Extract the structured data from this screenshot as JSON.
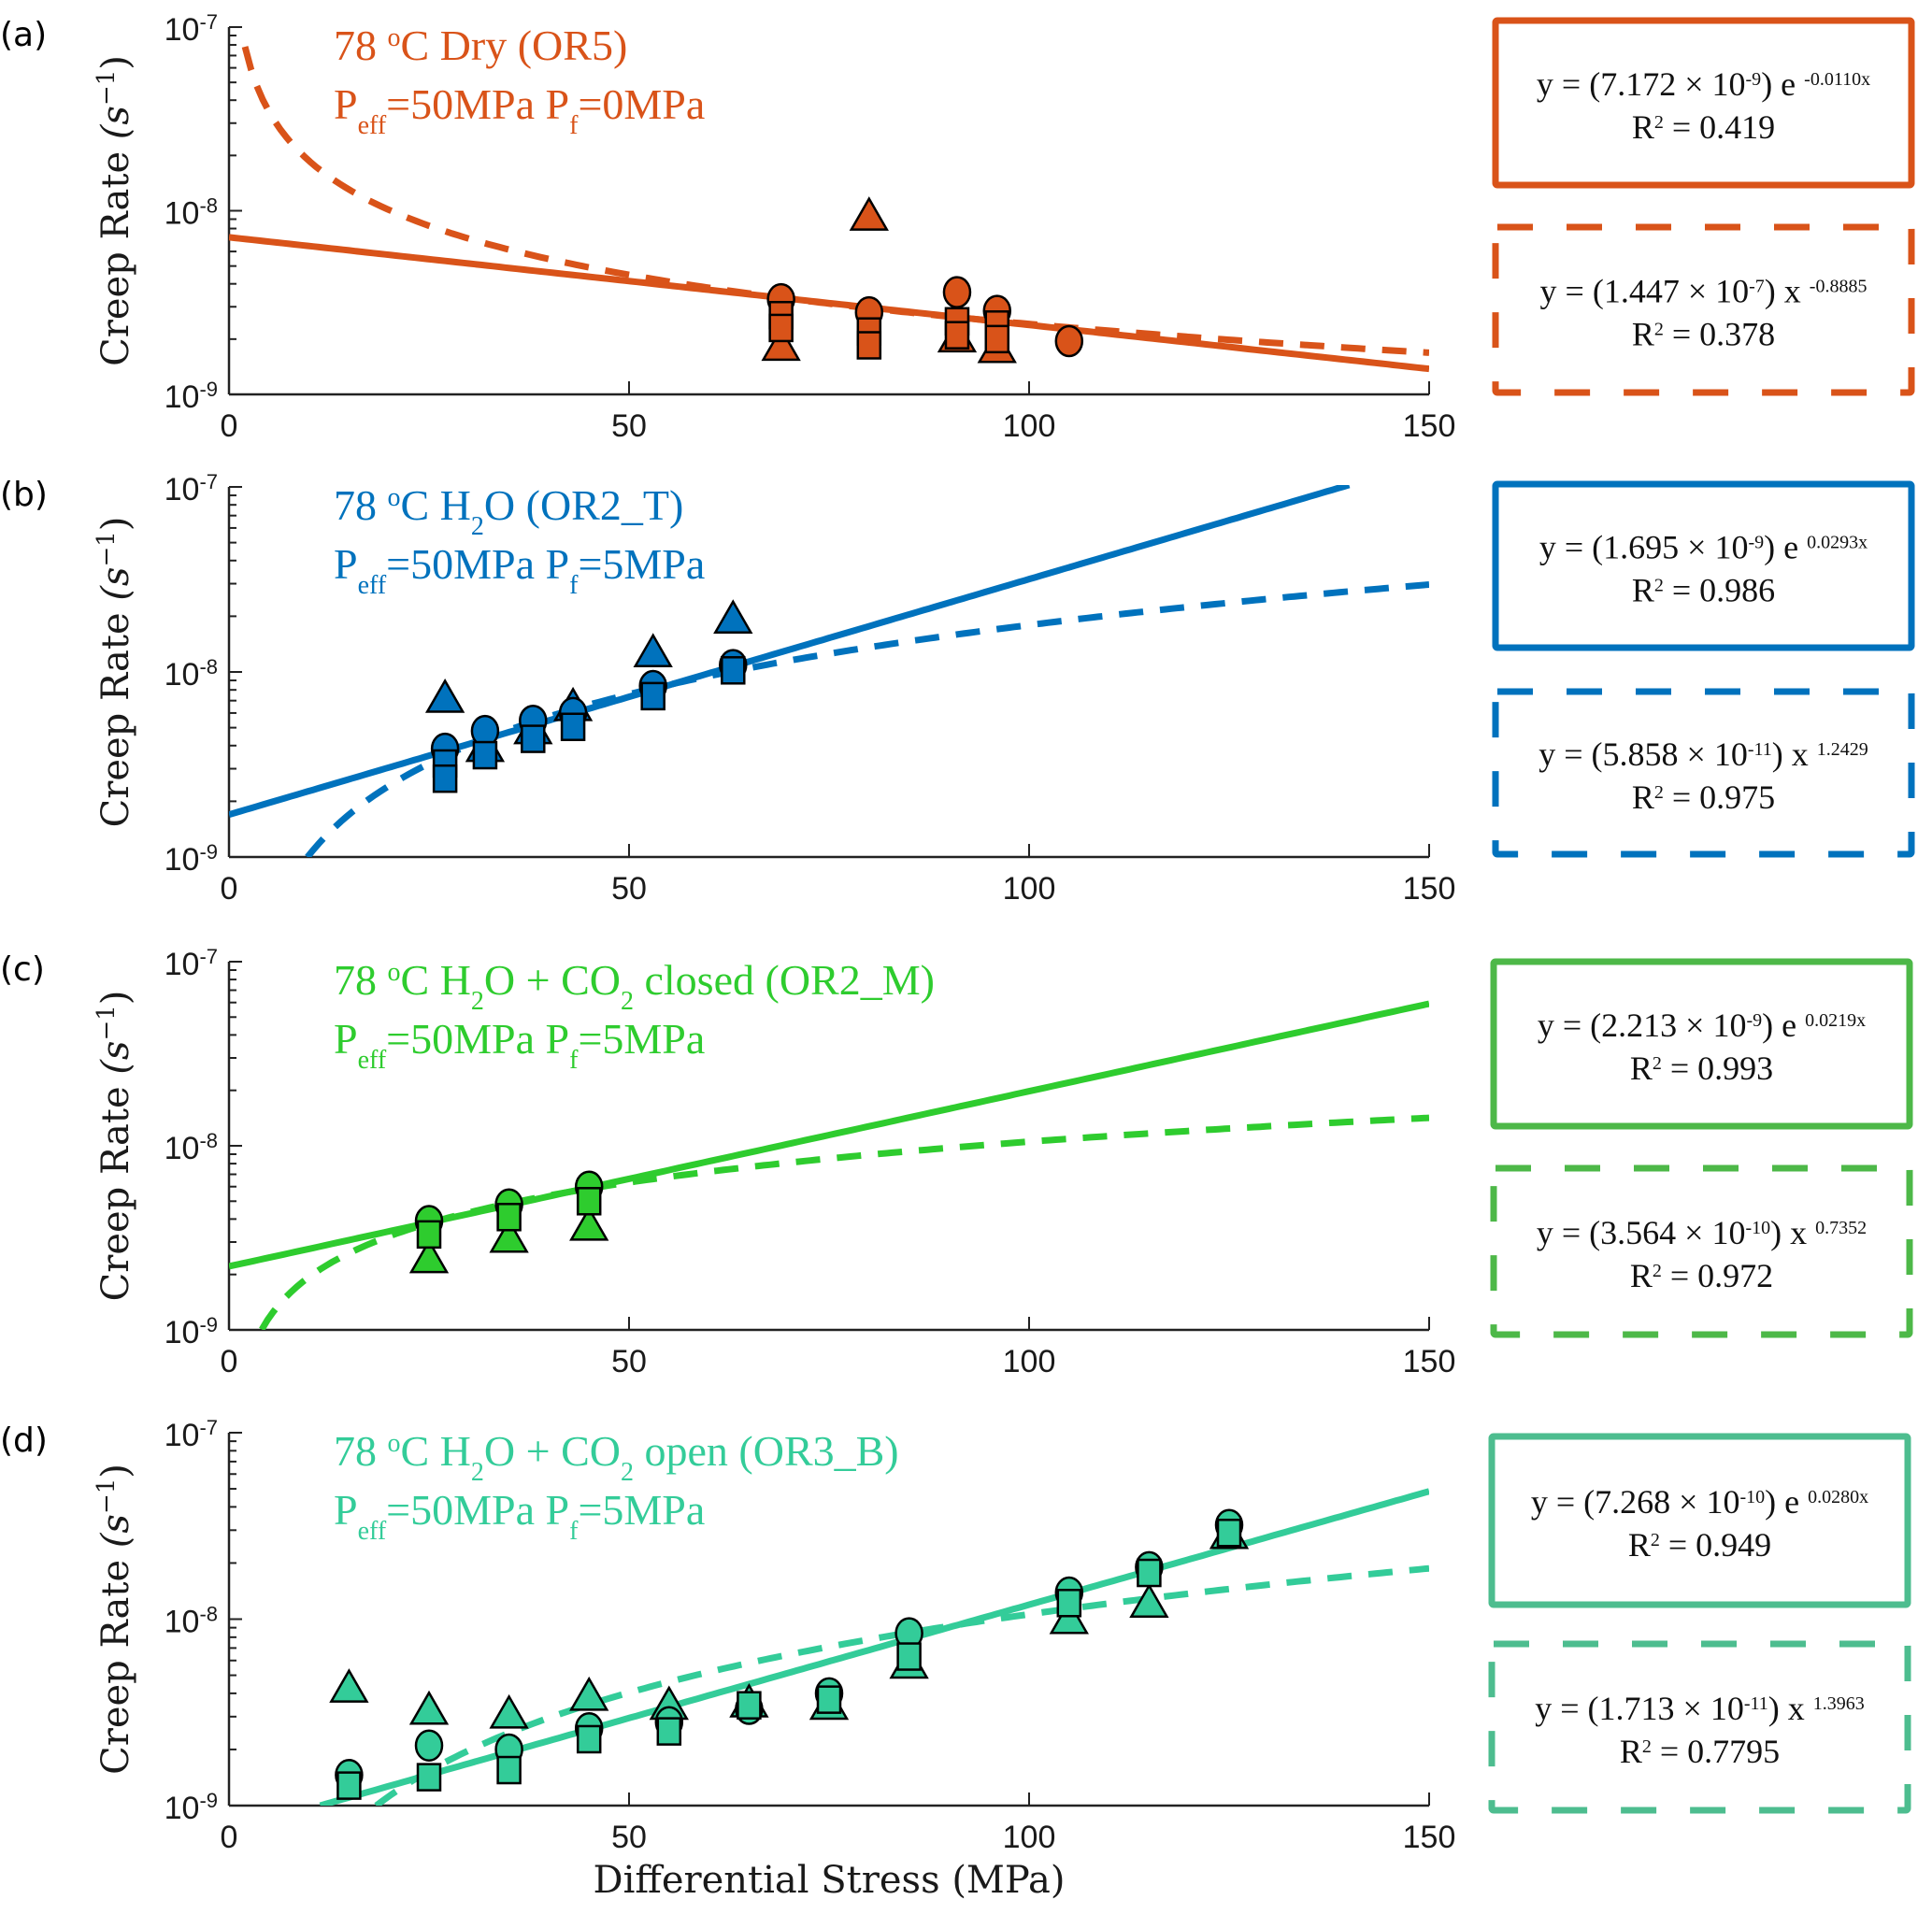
{
  "figure": {
    "x_axis_label": "Differential Stress (MPa)",
    "y_axis_label": "Creep Rate (s⁻¹)",
    "y_label_base": "Creep Rate",
    "y_label_unit": "(s",
    "y_label_exp": "−1",
    "y_label_close": ")"
  },
  "chart_data": [
    {
      "type": "scatter",
      "panel": "(a)",
      "color": "#d95319",
      "title_line1": {
        "prefix": "78 ",
        "deg": "o",
        "rest": "C Dry    (OR5)"
      },
      "title_line2": {
        "p1": "P",
        "p1sub": "eff",
        "p1rest": "=50MPa   ",
        "p2": "P",
        "p2sub": "f",
        "p2rest": "=0MPa"
      },
      "xlabel": "",
      "ylabel": "Creep Rate (s^-1)",
      "xlim": [
        0,
        150
      ],
      "ylim": [
        1e-09,
        1e-07
      ],
      "yscale": "log",
      "x_ticks": [
        "0",
        "50",
        "100",
        "150"
      ],
      "y_ticks": [
        {
          "base": "10",
          "exp": "-7"
        },
        {
          "base": "10",
          "exp": "-8"
        },
        {
          "base": "10",
          "exp": "-9"
        }
      ],
      "fits": [
        {
          "style": "solid",
          "model": "exponential",
          "a": 7.172e-09,
          "b": -0.011,
          "x_range": [
            0,
            150
          ],
          "equation": {
            "lhs": "y = (7.172 × 10",
            "pow": "-9",
            "mid": ") e ",
            "exp": "-0.0110x"
          },
          "r2_label": "R",
          "r2_sup": "2",
          "r2_value": " = 0.419"
        },
        {
          "style": "dashed",
          "model": "power",
          "a": 1.447e-07,
          "b": -0.8885,
          "x_range": [
            2,
            150
          ],
          "equation": {
            "lhs": "y = (1.447 × 10",
            "pow": "-7",
            "mid": ") x ",
            "exp": "-0.8885"
          },
          "r2_label": "R",
          "r2_sup": "2",
          "r2_value": " = 0.378"
        }
      ],
      "points": {
        "circle": [
          [
            69,
            3.3e-09
          ],
          [
            80,
            2.8e-09
          ],
          [
            91,
            3.6e-09
          ],
          [
            96,
            2.85e-09
          ],
          [
            105,
            1.95e-09
          ]
        ],
        "square": [
          [
            69,
            2.7e-09
          ],
          [
            69,
            2.3e-09
          ],
          [
            80,
            2.2e-09
          ],
          [
            80,
            1.85e-09
          ],
          [
            91,
            2.5e-09
          ],
          [
            91,
            2.1e-09
          ],
          [
            96,
            2.4e-09
          ],
          [
            96,
            2e-09
          ]
        ],
        "triangle": [
          [
            69,
            1.8e-09
          ],
          [
            80,
            9.2e-09
          ],
          [
            91,
            2e-09
          ],
          [
            96,
            1.75e-09
          ]
        ]
      }
    },
    {
      "type": "scatter",
      "panel": "(b)",
      "color": "#0072bd",
      "title_line1": {
        "prefix": "78 ",
        "deg": "o",
        "rest": "C H",
        "sub": "2",
        "rest2": "O    (OR2_T)"
      },
      "title_line2": {
        "p1": "P",
        "p1sub": "eff",
        "p1rest": "=50MPa   ",
        "p2": "P",
        "p2sub": "f",
        "p2rest": "=5MPa"
      },
      "xlabel": "",
      "ylabel": "Creep Rate (s^-1)",
      "xlim": [
        0,
        150
      ],
      "ylim": [
        1e-09,
        1e-07
      ],
      "yscale": "log",
      "x_ticks": [
        "0",
        "50",
        "100",
        "150"
      ],
      "y_ticks": [
        {
          "base": "10",
          "exp": "-7"
        },
        {
          "base": "10",
          "exp": "-8"
        },
        {
          "base": "10",
          "exp": "-9"
        }
      ],
      "fits": [
        {
          "style": "solid",
          "model": "exponential",
          "a": 1.695e-09,
          "b": 0.0293,
          "x_range": [
            0,
            140
          ],
          "equation": {
            "lhs": "y = (1.695 × 10",
            "pow": "-9",
            "mid": ") e ",
            "exp": "0.0293x"
          },
          "r2_label": "R",
          "r2_sup": "2",
          "r2_value": " = 0.986"
        },
        {
          "style": "dashed",
          "model": "power",
          "a": 5.858e-11,
          "b": 1.2429,
          "x_range": [
            9.8,
            150
          ],
          "equation": {
            "lhs": "y = (5.858 × 10",
            "pow": "-11",
            "mid": ") x ",
            "exp": "1.2429"
          },
          "r2_label": "R",
          "r2_sup": "2",
          "r2_value": " = 0.975"
        }
      ],
      "points": {
        "circle": [
          [
            27,
            3.85e-09
          ],
          [
            32,
            4.8e-09
          ],
          [
            38,
            5.45e-09
          ],
          [
            43,
            6e-09
          ],
          [
            53,
            8.4e-09
          ],
          [
            63,
            1.09e-08
          ]
        ],
        "square": [
          [
            27,
            3.2e-09
          ],
          [
            27,
            2.65e-09
          ],
          [
            32,
            3.55e-09
          ],
          [
            38,
            4.35e-09
          ],
          [
            43,
            5.05e-09
          ],
          [
            53,
            7.4e-09
          ],
          [
            63,
            1.02e-08
          ]
        ],
        "triangle": [
          [
            27,
            7.1e-09
          ],
          [
            32,
            3.85e-09
          ],
          [
            38,
            4.8e-09
          ],
          [
            43,
            6.4e-09
          ],
          [
            53,
            1.25e-08
          ],
          [
            63,
            1.9e-08
          ]
        ]
      }
    },
    {
      "type": "scatter",
      "panel": "(c)",
      "color": "#2ecc2e",
      "box_color": "#4db848",
      "title_line1": {
        "prefix": "78 ",
        "deg": "o",
        "rest": "C H",
        "sub": "2",
        "rest2": "O + CO",
        "sub2": "2",
        "rest3": " closed  (OR2_M)"
      },
      "title_line2": {
        "p1": "P",
        "p1sub": "eff",
        "p1rest": "=50MPa   ",
        "p2": "P",
        "p2sub": "f",
        "p2rest": "=5MPa"
      },
      "xlabel": "",
      "ylabel": "Creep Rate (s^-1)",
      "xlim": [
        0,
        150
      ],
      "ylim": [
        1e-09,
        1e-07
      ],
      "yscale": "log",
      "x_ticks": [
        "0",
        "50",
        "100",
        "150"
      ],
      "y_ticks": [
        {
          "base": "10",
          "exp": "-7"
        },
        {
          "base": "10",
          "exp": "-8"
        },
        {
          "base": "10",
          "exp": "-9"
        }
      ],
      "fits": [
        {
          "style": "solid",
          "model": "exponential",
          "a": 2.213e-09,
          "b": 0.0219,
          "x_range": [
            0,
            150
          ],
          "equation": {
            "lhs": "y = (2.213 × 10",
            "pow": "-9",
            "mid": ") e ",
            "exp": "0.0219x"
          },
          "r2_label": "R",
          "r2_sup": "2",
          "r2_value": " = 0.993"
        },
        {
          "style": "dashed",
          "model": "power",
          "a": 3.564e-10,
          "b": 0.7352,
          "x_range": [
            4.1,
            150
          ],
          "equation": {
            "lhs": "y = (3.564 × 10",
            "pow": "-10",
            "mid": ") x ",
            "exp": "0.7352"
          },
          "r2_label": "R",
          "r2_sup": "2",
          "r2_value": " = 0.972"
        }
      ],
      "points": {
        "circle": [
          [
            25,
            3.9e-09
          ],
          [
            35,
            4.8e-09
          ],
          [
            45,
            6e-09
          ]
        ],
        "square": [
          [
            25,
            3.3e-09
          ],
          [
            35,
            4.1e-09
          ],
          [
            45,
            5e-09
          ]
        ],
        "triangle": [
          [
            25,
            2.4e-09
          ],
          [
            35,
            3.1e-09
          ],
          [
            45,
            3.6e-09
          ]
        ]
      }
    },
    {
      "type": "scatter",
      "panel": "(d)",
      "color": "#33cc99",
      "box_color": "#4dbd8f",
      "title_line1": {
        "prefix": "78 ",
        "deg": "o",
        "rest": "C H",
        "sub": "2",
        "rest2": "O + CO",
        "sub2": "2",
        "rest3": " open    (OR3_B)"
      },
      "title_line2": {
        "p1": "P",
        "p1sub": "eff",
        "p1rest": "=50MPa   ",
        "p2": "P",
        "p2sub": "f",
        "p2rest": "=5MPa"
      },
      "xlabel": "Differential Stress (MPa)",
      "ylabel": "Creep Rate (s^-1)",
      "xlim": [
        0,
        150
      ],
      "ylim": [
        1e-09,
        1e-07
      ],
      "yscale": "log",
      "x_ticks": [
        "0",
        "50",
        "100",
        "150"
      ],
      "y_ticks": [
        {
          "base": "10",
          "exp": "-7"
        },
        {
          "base": "10",
          "exp": "-8"
        },
        {
          "base": "10",
          "exp": "-9"
        }
      ],
      "fits": [
        {
          "style": "solid",
          "model": "exponential",
          "a": 7.268e-10,
          "b": 0.028,
          "x_range": [
            11.4,
            150
          ],
          "equation": {
            "lhs": "y = (7.268 × 10",
            "pow": "-10",
            "mid": ") e ",
            "exp": "0.0280x"
          },
          "r2_label": "R",
          "r2_sup": "2",
          "r2_value": " = 0.949"
        },
        {
          "style": "dashed",
          "model": "power",
          "a": 1.713e-11,
          "b": 1.3963,
          "x_range": [
            18.4,
            150
          ],
          "equation": {
            "lhs": "y = (1.713 × 10",
            "pow": "-11",
            "mid": ") x ",
            "exp": "1.3963"
          },
          "r2_label": "R",
          "r2_sup": "2",
          "r2_value": " = 0.7795"
        }
      ],
      "points": {
        "circle": [
          [
            15,
            1.46e-09
          ],
          [
            25,
            2.1e-09
          ],
          [
            35,
            2e-09
          ],
          [
            45,
            2.6e-09
          ],
          [
            55,
            2.8e-09
          ],
          [
            65,
            3.3e-09
          ],
          [
            75,
            4e-09
          ],
          [
            85,
            8.4e-09
          ],
          [
            105,
            1.39e-08
          ],
          [
            115,
            1.9e-08
          ],
          [
            125,
            3.2e-08
          ]
        ],
        "square": [
          [
            15,
            1.28e-09
          ],
          [
            25,
            1.42e-09
          ],
          [
            35,
            1.55e-09
          ],
          [
            45,
            2.27e-09
          ],
          [
            55,
            2.5e-09
          ],
          [
            65,
            3.45e-09
          ],
          [
            75,
            3.7e-09
          ],
          [
            85,
            6.3e-09
          ],
          [
            105,
            1.22e-08
          ],
          [
            115,
            1.77e-08
          ],
          [
            125,
            2.9e-08
          ]
        ],
        "triangle": [
          [
            15,
            4.2e-09
          ],
          [
            25,
            3.2e-09
          ],
          [
            35,
            3.05e-09
          ],
          [
            45,
            3.8e-09
          ],
          [
            55,
            3.4e-09
          ],
          [
            65,
            3.5e-09
          ],
          [
            75,
            3.4e-09
          ],
          [
            85,
            5.65e-09
          ],
          [
            105,
            9.8e-09
          ],
          [
            115,
            1.2e-08
          ],
          [
            125,
            2.8e-08
          ]
        ]
      }
    }
  ]
}
